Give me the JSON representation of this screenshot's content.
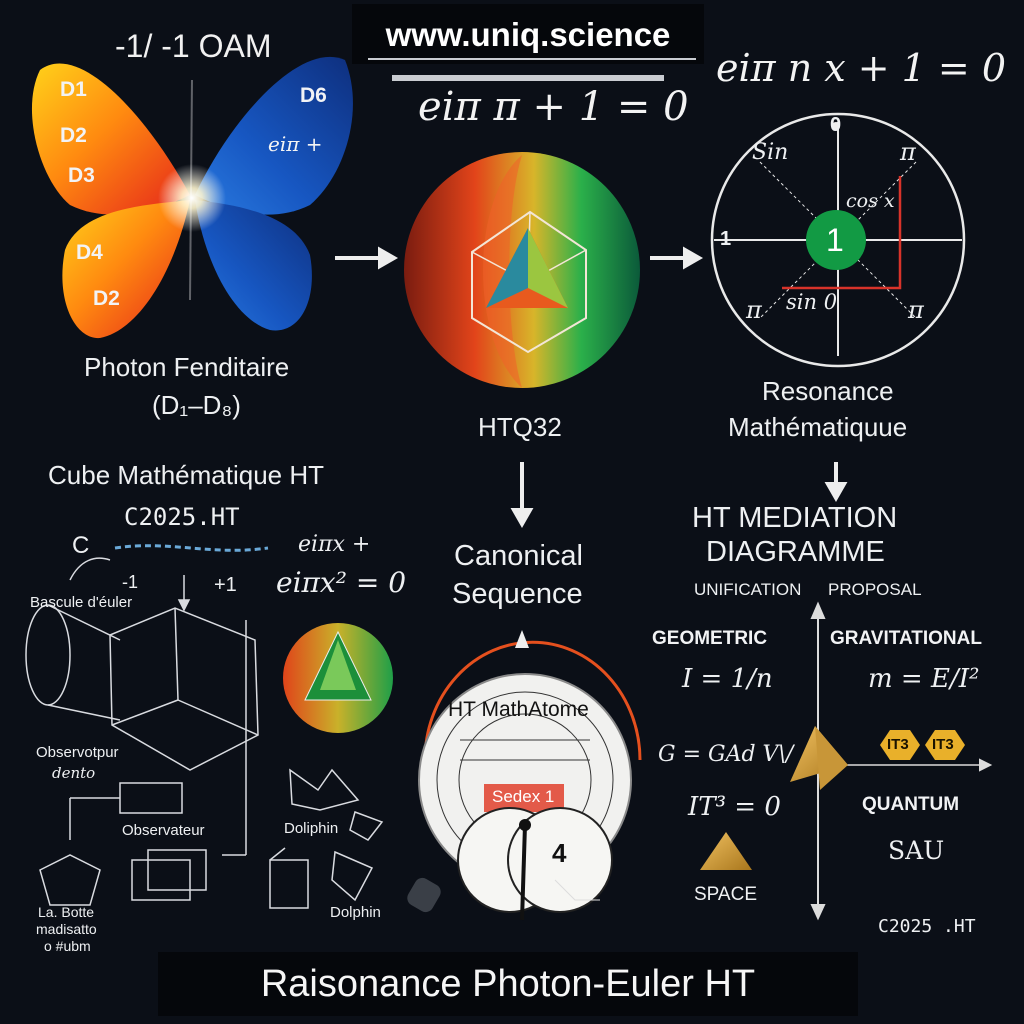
{
  "header": {
    "url": "www.uniq.science",
    "equation_left": "eiπ π + 1 = 0",
    "equation_right": "eiπ n x + 1 = 0"
  },
  "butterfly": {
    "title": "-1/ -1 OAM",
    "labels": [
      "D1",
      "D2",
      "D3",
      "D4",
      "D2",
      "D6"
    ],
    "formula": "eiπ +",
    "caption": "Photon Fenditaire",
    "subcaption": "(D₁–D₈)"
  },
  "sphere": {
    "caption": "HTQ32"
  },
  "circle": {
    "top": "0",
    "left": "1",
    "center": "1",
    "sin_label": "Sin",
    "pi_tr": "π",
    "pi_bl": "π",
    "pi_br": "π",
    "cos": "cos x",
    "sin0": "sin 0",
    "caption1": "Resonance",
    "caption2": "Mathématiquue"
  },
  "cube": {
    "title": "Cube Mathématique HT",
    "subtitle": "C2025.HT",
    "c_label": "C",
    "e_expr": "eiπx +",
    "minus1": "-1",
    "plus1": "+1",
    "equation": "eiπx² = 0",
    "bascule": "Bascule d'éuler",
    "observ1": "Observotpur",
    "observ1b": "dento",
    "observateur": "Observateur",
    "dolphin1": "Doliphin",
    "dolphin2": "Dolphin",
    "box_label1": "La. Botte",
    "box_label2": "madisatto",
    "box_label3": "o #ubm"
  },
  "canonical": {
    "line1": "Canonical",
    "line2": "Sequence",
    "wheel_title": "HT MathAtome",
    "wheel_badge": "Sedex 1",
    "wheel_num": "4"
  },
  "mediation": {
    "title1": "HT MEDIATION",
    "title2": "DIAGRAMME",
    "unification": "UNIFICATION",
    "proposal": "PROPOSAL",
    "geometric": "GEOMETRIC",
    "gravitational": "GRAVITATIONAL",
    "eq_i": "I = 1/n",
    "eq_m": "m = E/I²",
    "eq_g": "G = GAd V\\/",
    "eq_it": "IT³ = 0",
    "badge1": "IT3",
    "badge2": "IT3",
    "quantum": "QUANTUM",
    "sau": "SAU",
    "space": "SPACE",
    "signature": "C2025 .HT"
  },
  "footer": {
    "title": "Raisonance Photon-Euler HT"
  }
}
